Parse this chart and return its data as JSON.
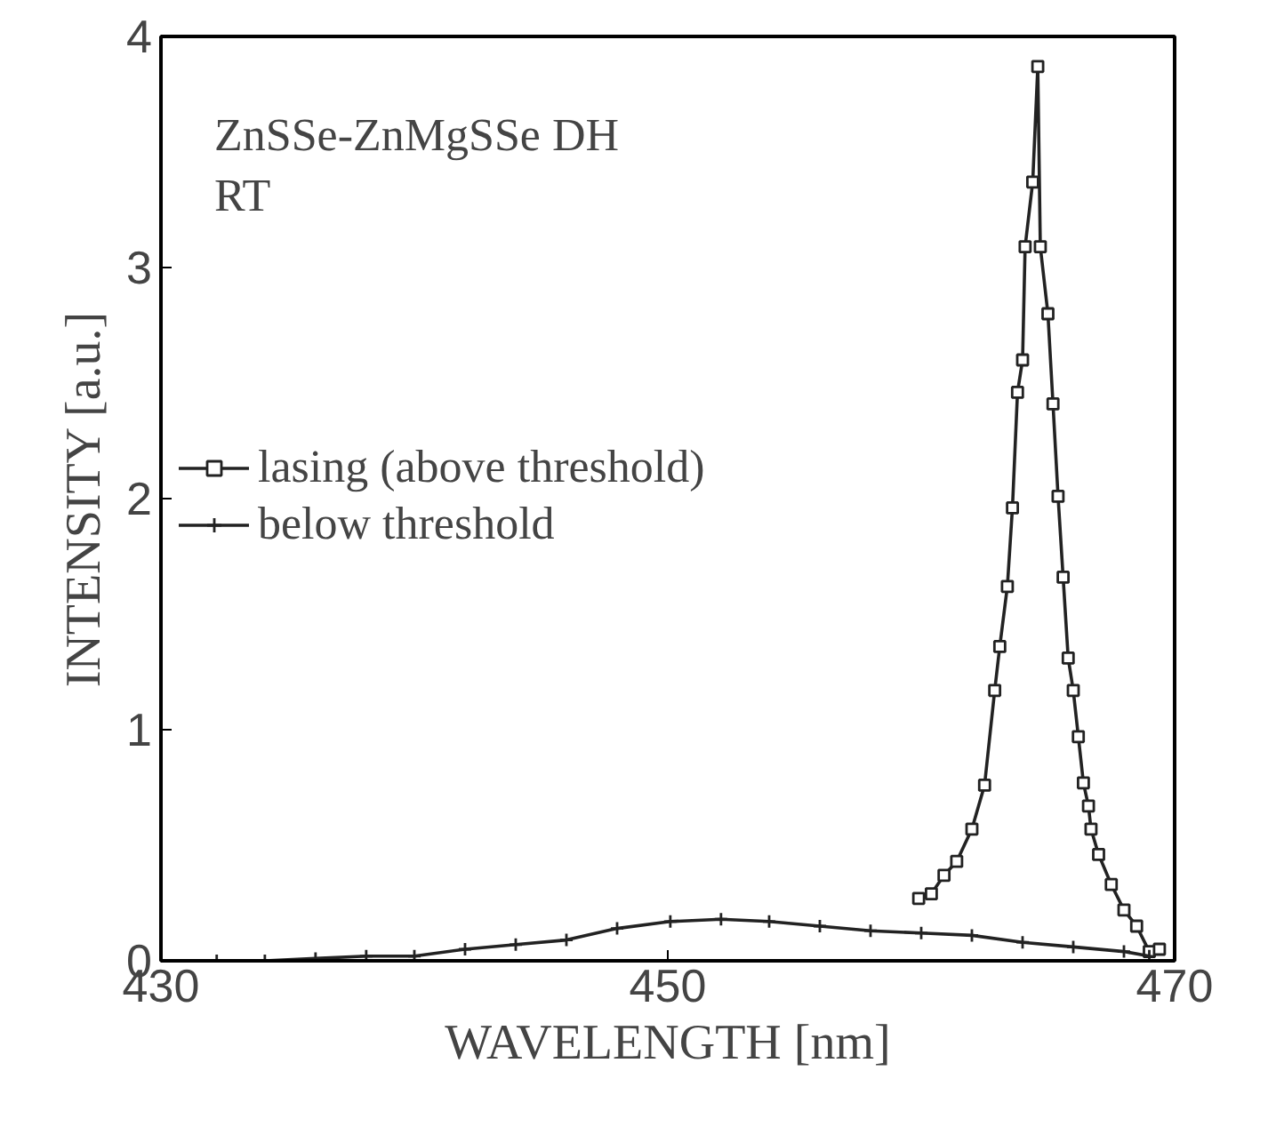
{
  "chart_data": {
    "type": "line",
    "xlabel": "WAVELENGTH [nm]",
    "ylabel": "INTENSITY [a.u.]",
    "annotations": [
      "ZnSSe-ZnMgSSe DH",
      "RT"
    ],
    "xlim": [
      430,
      470
    ],
    "ylim": [
      0,
      4
    ],
    "xticks": [
      430,
      450,
      470
    ],
    "yticks": [
      0,
      1,
      2,
      3,
      4
    ],
    "grid": false,
    "legend": "top left",
    "line_style": "solid",
    "series": [
      {
        "name": "lasing (above threshold)",
        "color": "#222222",
        "marker": "square",
        "x": [
          459.9,
          460.4,
          460.9,
          461.4,
          462.0,
          462.5,
          462.9,
          463.1,
          463.4,
          463.6,
          463.8,
          464.0,
          464.1,
          464.4,
          464.6,
          464.7,
          465.0,
          465.2,
          465.4,
          465.6,
          465.8,
          466.0,
          466.2,
          466.4,
          466.6,
          466.7,
          467.0,
          467.5,
          468.0,
          468.5,
          469.0,
          469.4
        ],
        "values": [
          0.27,
          0.29,
          0.37,
          0.43,
          0.57,
          0.76,
          1.17,
          1.36,
          1.62,
          1.96,
          2.46,
          2.6,
          3.09,
          3.37,
          3.87,
          3.09,
          2.8,
          2.41,
          2.01,
          1.66,
          1.31,
          1.17,
          0.97,
          0.77,
          0.67,
          0.57,
          0.46,
          0.33,
          0.22,
          0.15,
          0.04,
          0.05
        ]
      },
      {
        "name": "below threshold",
        "color": "#222222",
        "marker": "cross",
        "x": [
          430,
          432.2,
          434.1,
          436.1,
          438.1,
          440.0,
          442.0,
          444.0,
          446.0,
          448.0,
          450.1,
          452.1,
          454.0,
          456.0,
          458.0,
          460.0,
          462.0,
          464.0,
          466.0,
          468.0,
          469.0
        ],
        "values": [
          0,
          0,
          0,
          0.01,
          0.02,
          0.02,
          0.05,
          0.07,
          0.09,
          0.14,
          0.17,
          0.18,
          0.17,
          0.15,
          0.13,
          0.12,
          0.11,
          0.08,
          0.06,
          0.04,
          0.02
        ]
      }
    ]
  }
}
